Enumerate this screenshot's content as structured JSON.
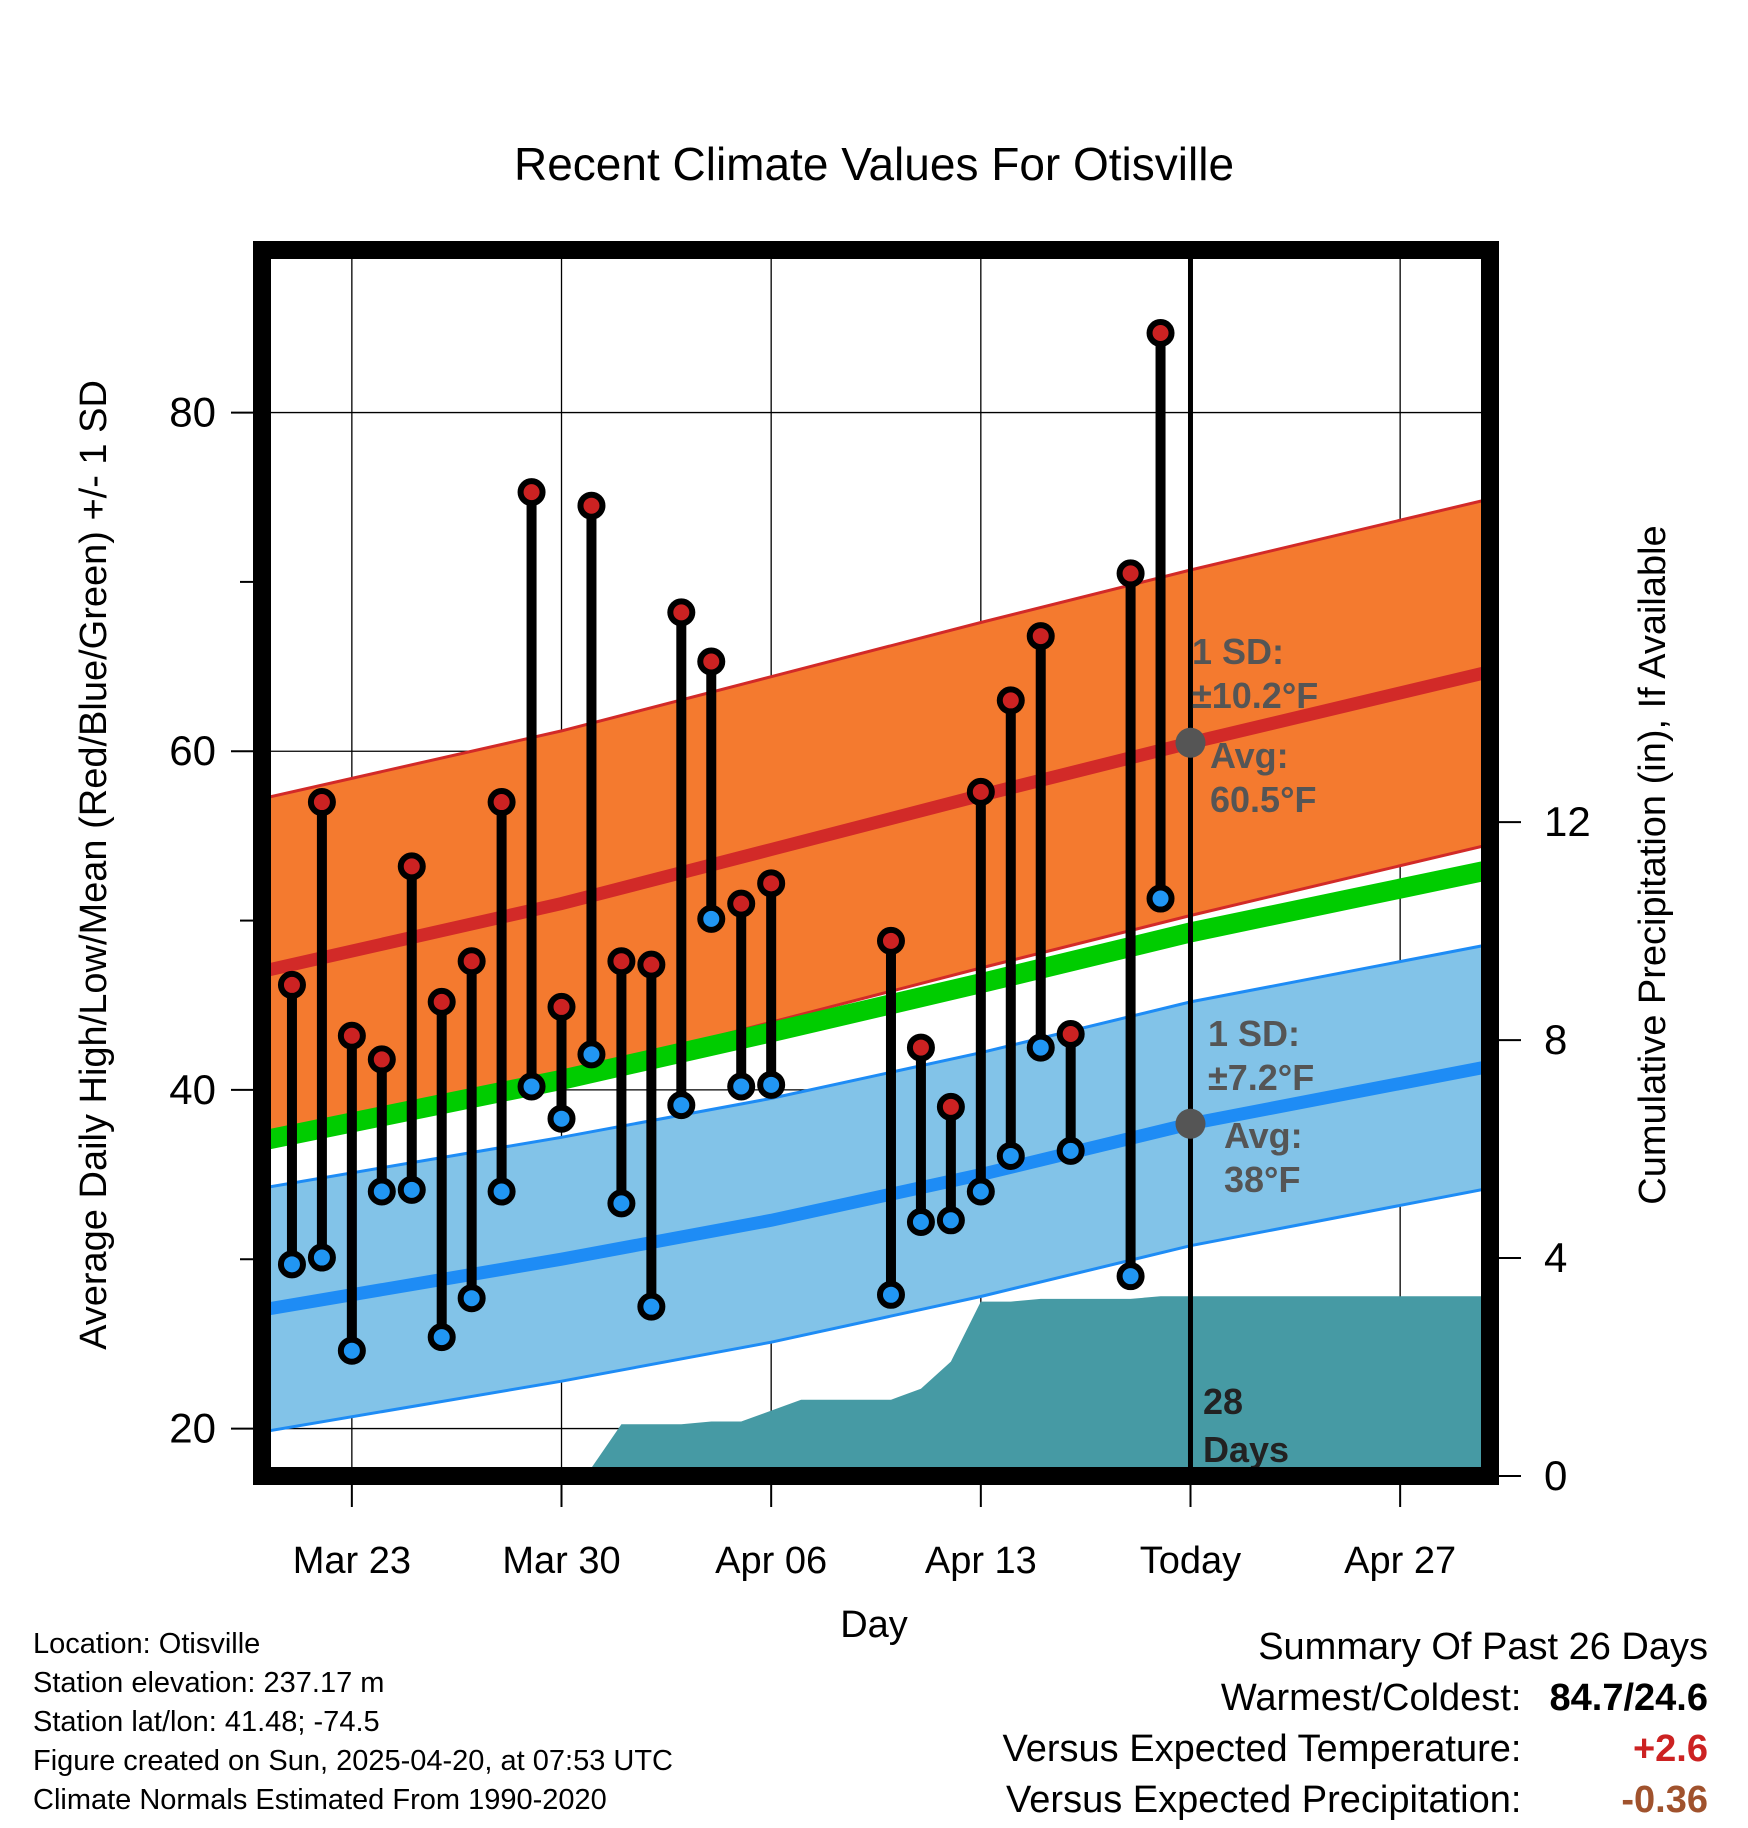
{
  "chart_data": {
    "type": "line",
    "title": "Recent Climate Values For Otisville",
    "xlabel": "Day",
    "ylabel": "Average Daily High/Low/Mean (Red/Blue/Green) +/- 1 SD",
    "y2label": "Cumulative Precipitation (in), If Available",
    "ylim": [
      17.2,
      89.6
    ],
    "y2lim": [
      0,
      22.5
    ],
    "yticks": [
      20,
      40,
      60,
      80
    ],
    "yticks_minor": [
      30,
      50,
      70
    ],
    "y2ticks": [
      0,
      4,
      8,
      12
    ],
    "x_range_days": [
      -31,
      10
    ],
    "xticks": [
      {
        "label": "Mar 23",
        "day": -28
      },
      {
        "label": "Mar 30",
        "day": -21
      },
      {
        "label": "Apr 06",
        "day": -14
      },
      {
        "label": "Apr 13",
        "day": -7
      },
      {
        "label": "Today",
        "day": 0
      },
      {
        "label": "Apr 27",
        "day": 7
      }
    ],
    "grid": true,
    "normals": {
      "day": [
        -31,
        -21,
        -14,
        -7,
        0,
        10
      ],
      "high_mean": [
        47.0,
        51.0,
        54.2,
        57.4,
        60.5,
        64.7
      ],
      "high_sd": 10.2,
      "low_mean": [
        27.0,
        30.0,
        32.3,
        35.0,
        38.0,
        41.4
      ],
      "low_sd": 7.2,
      "mean": [
        37.0,
        40.6,
        43.4,
        46.3,
        49.3,
        53.0
      ]
    },
    "series": [
      {
        "name": "High",
        "day": [
          -30,
          -29,
          -28,
          -27,
          -26,
          -25,
          -24,
          -23,
          -22,
          -21,
          -20,
          -19,
          -18,
          -17,
          -16,
          -15,
          -14,
          -10,
          -9,
          -8,
          -7,
          -6,
          -5,
          -4,
          -2,
          -1
        ],
        "values": [
          46.2,
          57.0,
          43.2,
          41.8,
          53.2,
          45.2,
          47.6,
          57.0,
          75.3,
          44.9,
          74.5,
          47.6,
          47.4,
          68.2,
          65.3,
          51.0,
          52.2,
          48.8,
          42.5,
          39.0,
          57.6,
          63.0,
          66.8,
          43.3,
          70.5,
          84.7
        ]
      },
      {
        "name": "Low",
        "day": [
          -30,
          -29,
          -28,
          -27,
          -26,
          -25,
          -24,
          -23,
          -22,
          -21,
          -20,
          -19,
          -18,
          -17,
          -16,
          -15,
          -14,
          -10,
          -9,
          -8,
          -7,
          -6,
          -5,
          -4,
          -2,
          -1
        ],
        "values": [
          29.7,
          30.1,
          24.6,
          34.0,
          34.1,
          25.4,
          27.7,
          34.0,
          40.2,
          38.3,
          42.1,
          33.3,
          27.2,
          39.1,
          50.1,
          40.2,
          40.3,
          27.9,
          32.2,
          32.3,
          34.0,
          36.1,
          42.5,
          36.4,
          29.0,
          51.3
        ]
      },
      {
        "name": "Cumulative Precipitation",
        "axis": "right",
        "day": [
          -31,
          -22,
          -21,
          -20,
          -19,
          -18,
          -17,
          -16,
          -15,
          -14,
          -13,
          -12,
          -11,
          -10,
          -9,
          -8,
          -7,
          -6,
          -5,
          -4,
          -3,
          -2,
          -1,
          0,
          10
        ],
        "values": [
          0.0,
          0.0,
          0.05,
          0.15,
          0.95,
          0.95,
          0.95,
          1.0,
          1.0,
          1.2,
          1.4,
          1.4,
          1.4,
          1.4,
          1.6,
          2.1,
          3.2,
          3.2,
          3.25,
          3.25,
          3.25,
          3.25,
          3.3,
          3.3,
          3.3
        ]
      }
    ],
    "annotations": {
      "high_sd_label": "1 SD:",
      "high_sd_value": "±10.2°F",
      "high_avg_label": "Avg:",
      "high_avg_value": "60.5°F",
      "low_sd_label": "1 SD:",
      "low_sd_value": "±7.2°F",
      "low_avg_label": "Avg:",
      "low_avg_value": "38°F",
      "days_count": "28",
      "days_label": "Days"
    },
    "colors": {
      "high_band": "#f47a2f",
      "high_line": "#d22a28",
      "high_band_edge": "#d22a28",
      "low_band": "#82c3e8",
      "low_line": "#1e8cf5",
      "low_band_edge": "#1e8cf5",
      "mean_line": "#00cc00",
      "precip": "#469aa4",
      "high_marker": "#cc2222",
      "low_marker": "#2196f3",
      "annotation": "#555555"
    }
  },
  "footer": {
    "location": "Location: Otisville",
    "elevation": "Station elevation: 237.17 m",
    "latlon": "Station lat/lon: 41.48; -74.5",
    "created": "Figure created on Sun, 2025-04-20, at 07:53 UTC",
    "normals": "Climate Normals Estimated From 1990-2020"
  },
  "summary": {
    "heading": "Summary Of Past 26 Days",
    "warm_cold_label": "Warmest/Coldest:",
    "warm_cold_value": "84.7/24.6",
    "temp_label": "Versus Expected Temperature:",
    "temp_value": "+2.6",
    "temp_color": "#cc2222",
    "precip_label": "Versus Expected Precipitation:",
    "precip_value": "-0.36",
    "precip_color": "#a0522d"
  }
}
